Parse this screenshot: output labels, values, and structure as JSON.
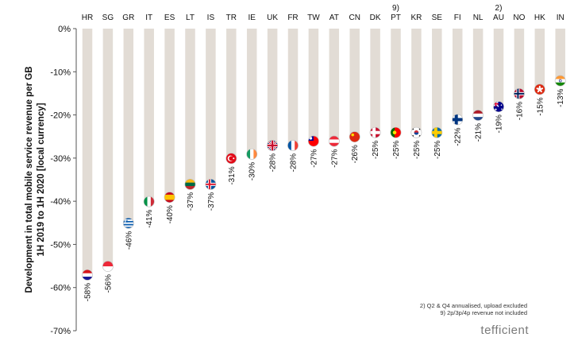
{
  "chart_data": {
    "type": "bar",
    "ylabel_lines": [
      "Development in total mobile service revenue per GB",
      "1H 2019 to 1H 2020 [local currency]"
    ],
    "ylim": [
      -70,
      0
    ],
    "yticks": [
      0,
      -10,
      -20,
      -30,
      -40,
      -50,
      -60,
      -70
    ],
    "ytick_labels": [
      "0%",
      "-10%",
      "-20%",
      "-30%",
      "-40%",
      "-50%",
      "-60%",
      "-70%"
    ],
    "categories": [
      "HR",
      "SG",
      "GR",
      "IT",
      "ES",
      "LT",
      "IS",
      "TR",
      "IE",
      "UK",
      "FR",
      "TW",
      "AT",
      "CN",
      "DK",
      "PT",
      "KR",
      "SE",
      "FI",
      "NL",
      "AU",
      "NO",
      "HK",
      "IN"
    ],
    "superscripts": {
      "PT": "9)",
      "AU": "2)"
    },
    "values": [
      -58,
      -56,
      -46,
      -41,
      -40,
      -37,
      -37,
      -31,
      -30,
      -28,
      -28,
      -27,
      -27,
      -26,
      -25,
      -25,
      -25,
      -25,
      -22,
      -21,
      -19,
      -16,
      -15,
      -13
    ],
    "value_labels": [
      "-58%",
      "-56%",
      "-46%",
      "-41%",
      "-40%",
      "-37%",
      "-37%",
      "-31%",
      "-30%",
      "-28%",
      "-28%",
      "-27%",
      "-27%",
      "-26%",
      "-25%",
      "-25%",
      "-25%",
      "-25%",
      "-22%",
      "-21%",
      "-19%",
      "-16%",
      "-15%",
      "-13%"
    ],
    "footnotes": [
      "2) Q2 & Q4 annualised, upload excluded",
      "9) 2p/3p/4p revenue not included"
    ],
    "brand": "tefficient",
    "colors": {
      "bar": "#e2dcd5",
      "text": "#111111"
    }
  }
}
